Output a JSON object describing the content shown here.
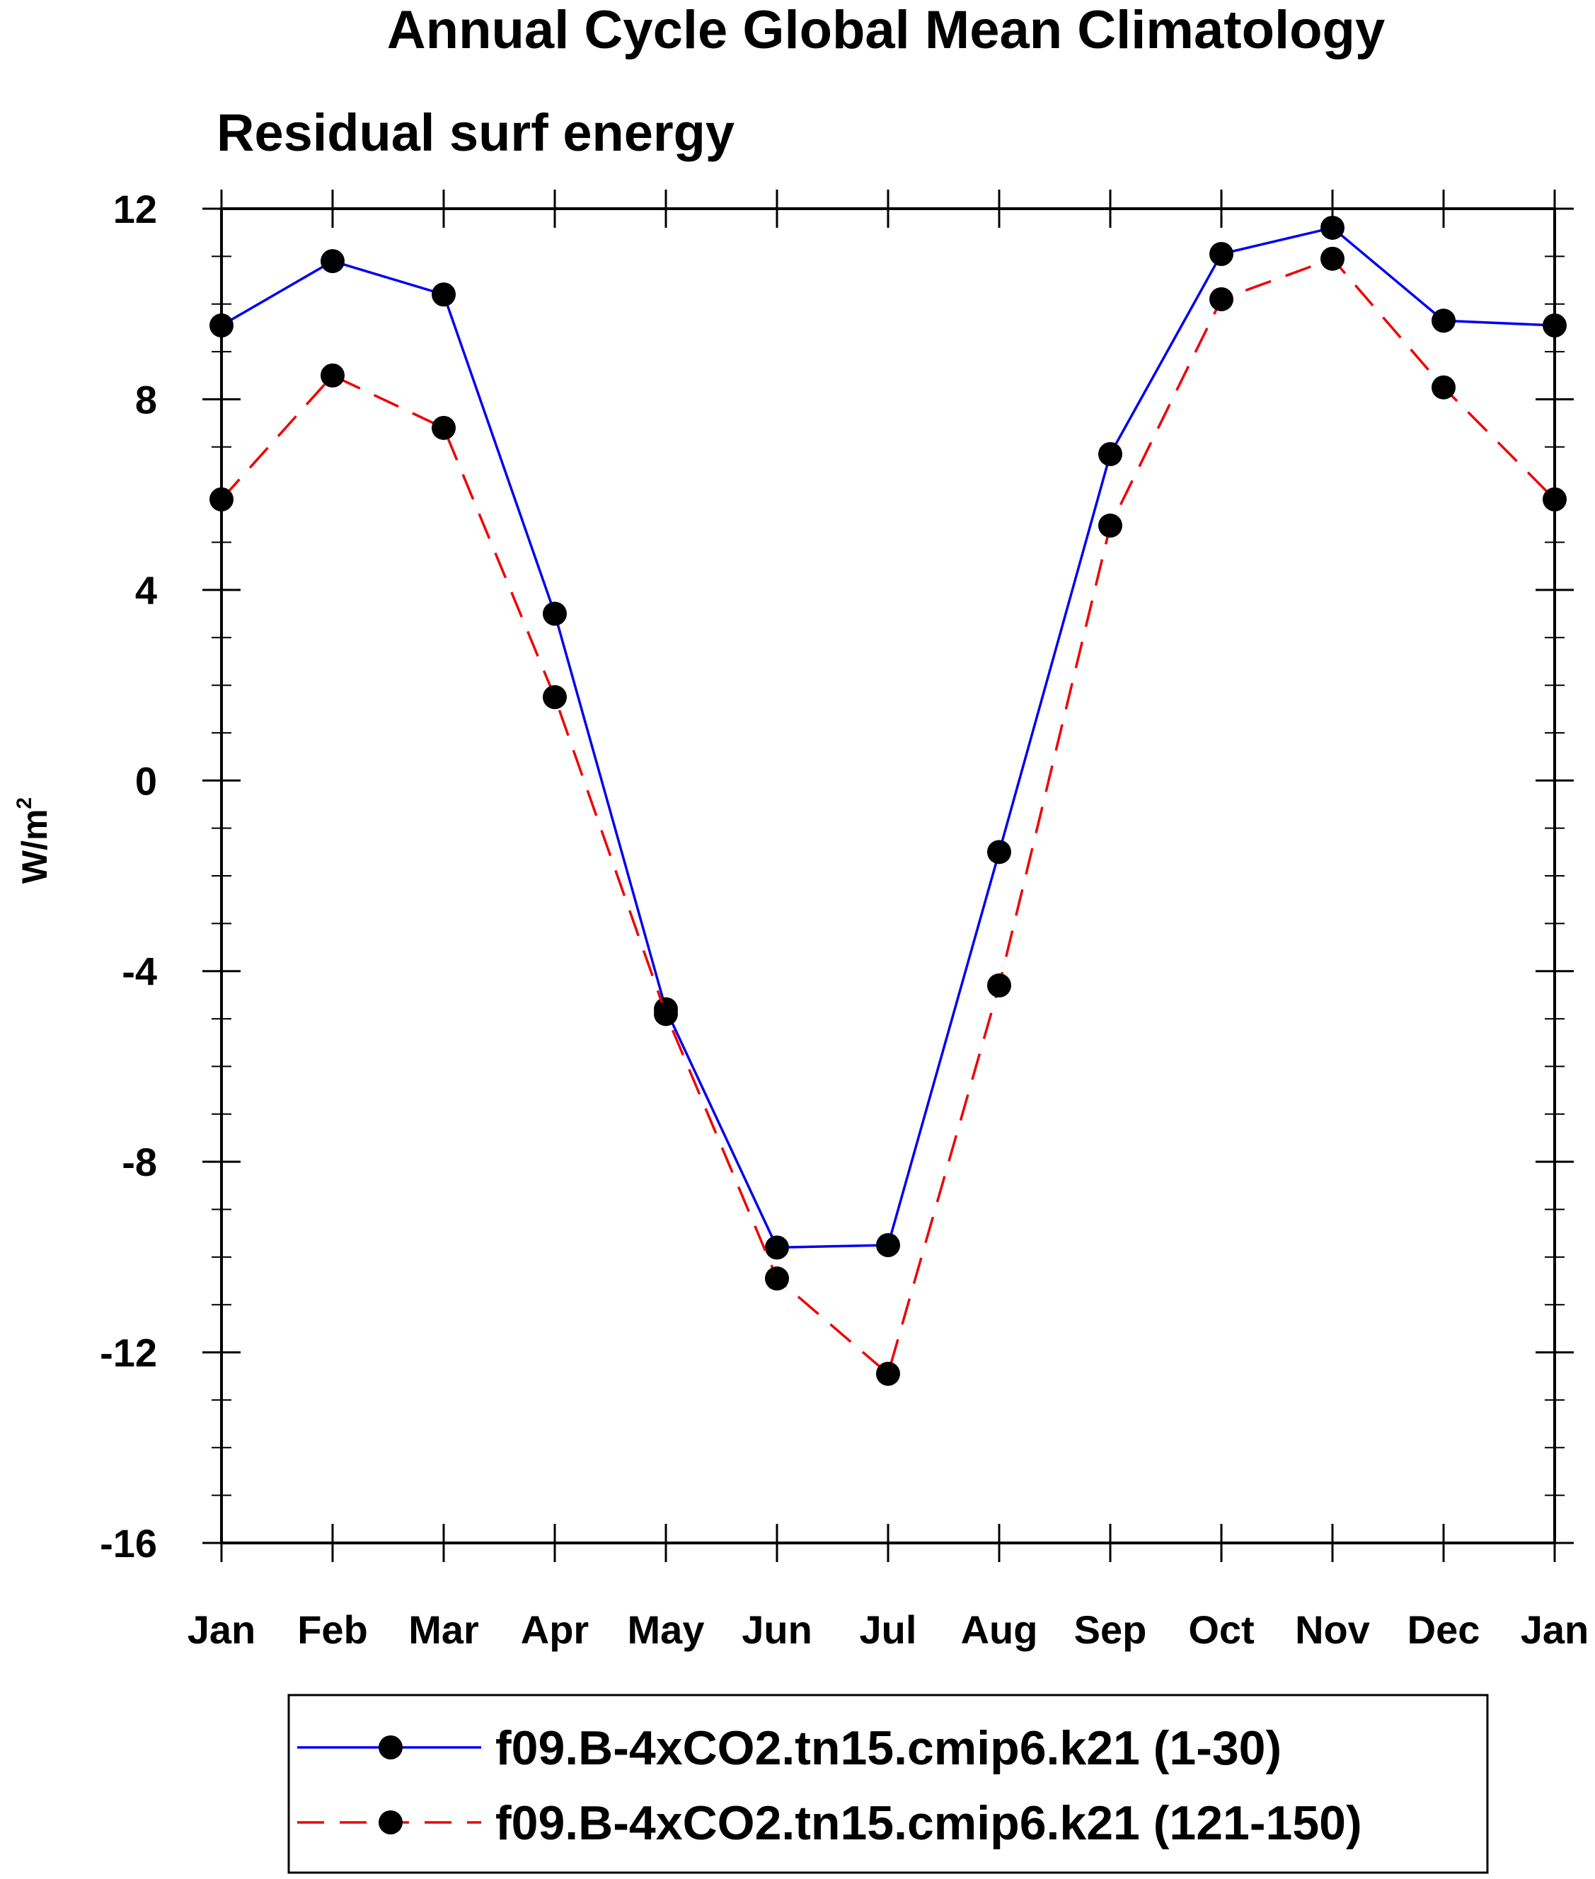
{
  "chart_data": {
    "type": "line",
    "title": "Annual Cycle Global Mean Climatology",
    "subtitle": "Residual surf energy",
    "ylabel_base": "W/m",
    "ylabel_sup": "2",
    "xlabel": "",
    "categories": [
      "Jan",
      "Feb",
      "Mar",
      "Apr",
      "May",
      "Jun",
      "Jul",
      "Aug",
      "Sep",
      "Oct",
      "Nov",
      "Dec",
      "Jan"
    ],
    "ylim": [
      -16,
      12
    ],
    "yticks": [
      12,
      8,
      4,
      0,
      -4,
      -8,
      -12,
      -16
    ],
    "ytick_labels": [
      "12",
      "8",
      "4",
      "0",
      "-4",
      "-8",
      "-12",
      "-16"
    ],
    "y_minor_step": 1,
    "grid": false,
    "legend_position": "bottom",
    "series": [
      {
        "name": "f09.B-4xCO2.tn15.cmip6.k21 (1-30)",
        "color": "#0000ee",
        "dash": "solid",
        "values": [
          9.55,
          10.9,
          10.2,
          3.5,
          -4.8,
          -9.8,
          -9.75,
          -1.5,
          6.85,
          11.05,
          11.6,
          9.65,
          9.55
        ]
      },
      {
        "name": "f09.B-4xCO2.tn15.cmip6.k21 (121-150)",
        "color": "#ee0000",
        "dash": "dashed",
        "values": [
          5.9,
          8.5,
          7.4,
          1.75,
          -4.9,
          -10.45,
          -12.45,
          -4.3,
          5.35,
          10.1,
          10.95,
          8.25,
          5.9
        ]
      }
    ]
  }
}
